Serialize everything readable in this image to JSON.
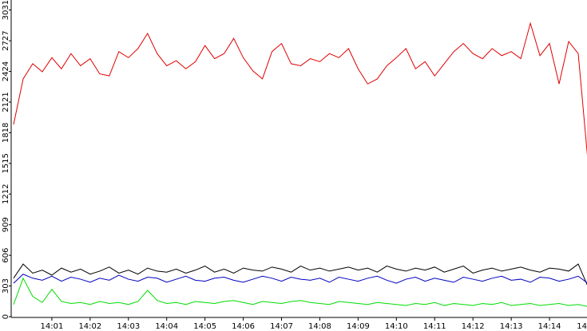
{
  "chart_data": {
    "type": "line",
    "x": [
      0,
      0.25,
      0.5,
      0.75,
      1,
      1.25,
      1.5,
      1.75,
      2,
      2.25,
      2.5,
      2.75,
      3,
      3.25,
      3.5,
      3.75,
      4,
      4.25,
      4.5,
      4.75,
      5,
      5.25,
      5.5,
      5.75,
      6,
      6.25,
      6.5,
      6.75,
      7,
      7.25,
      7.5,
      7.75,
      8,
      8.25,
      8.5,
      8.75,
      9,
      9.25,
      9.5,
      9.75,
      10,
      10.25,
      10.5,
      10.75,
      11,
      11.25,
      11.5,
      11.75,
      12,
      12.25,
      12.5,
      12.75,
      13,
      13.25,
      13.5,
      13.75,
      14,
      14.25,
      14.5,
      14.75,
      15
    ],
    "xlim": [
      0,
      15
    ],
    "xticks": [
      {
        "value": 1,
        "label": "14:01"
      },
      {
        "value": 2,
        "label": "14:02"
      },
      {
        "value": 3,
        "label": "14:03"
      },
      {
        "value": 4,
        "label": "14:04"
      },
      {
        "value": 5,
        "label": "14:05"
      },
      {
        "value": 6,
        "label": "14:06"
      },
      {
        "value": 7,
        "label": "14:07"
      },
      {
        "value": 8,
        "label": "14:08"
      },
      {
        "value": 9,
        "label": "14:09"
      },
      {
        "value": 10,
        "label": "14:10"
      },
      {
        "value": 11,
        "label": "14:11"
      },
      {
        "value": 12,
        "label": "14:12"
      },
      {
        "value": 13,
        "label": "14:13"
      },
      {
        "value": 14,
        "label": "14:14"
      },
      {
        "value": 15,
        "label": "14"
      }
    ],
    "ylim": [
      0,
      3130
    ],
    "yticks": [
      0,
      303,
      606,
      909,
      1212,
      1515,
      1818,
      2121,
      2424,
      2727,
      3031
    ],
    "series": [
      {
        "color": "#e00000",
        "values": [
          1900,
          2350,
          2500,
          2420,
          2560,
          2450,
          2600,
          2480,
          2550,
          2400,
          2380,
          2620,
          2560,
          2650,
          2800,
          2600,
          2480,
          2530,
          2450,
          2520,
          2680,
          2550,
          2600,
          2750,
          2560,
          2430,
          2350,
          2620,
          2700,
          2500,
          2480,
          2550,
          2520,
          2600,
          2560,
          2650,
          2450,
          2300,
          2350,
          2480,
          2560,
          2650,
          2450,
          2520,
          2380,
          2500,
          2620,
          2700,
          2600,
          2550,
          2650,
          2580,
          2620,
          2550,
          2900,
          2580,
          2700,
          2300,
          2720,
          2600,
          1550
        ]
      },
      {
        "color": "#000000",
        "values": [
          380,
          520,
          430,
          460,
          410,
          480,
          440,
          470,
          420,
          450,
          490,
          430,
          460,
          420,
          480,
          450,
          440,
          470,
          430,
          460,
          500,
          440,
          470,
          430,
          480,
          460,
          450,
          490,
          470,
          440,
          500,
          460,
          480,
          450,
          470,
          490,
          460,
          480,
          440,
          500,
          470,
          450,
          480,
          460,
          490,
          440,
          470,
          500,
          430,
          460,
          480,
          450,
          470,
          490,
          460,
          440,
          480,
          470,
          450,
          520,
          300
        ]
      },
      {
        "color": "#0000c0",
        "values": [
          330,
          420,
          380,
          360,
          400,
          350,
          390,
          370,
          340,
          380,
          360,
          410,
          370,
          350,
          390,
          380,
          340,
          370,
          400,
          360,
          350,
          380,
          390,
          360,
          340,
          370,
          400,
          380,
          350,
          390,
          370,
          360,
          380,
          340,
          390,
          370,
          350,
          380,
          400,
          360,
          330,
          370,
          390,
          350,
          380,
          360,
          340,
          390,
          370,
          350,
          380,
          400,
          360,
          370,
          340,
          390,
          380,
          350,
          370,
          400,
          330
        ]
      },
      {
        "color": "#00dd00",
        "values": [
          120,
          380,
          200,
          140,
          270,
          150,
          130,
          140,
          120,
          150,
          130,
          140,
          120,
          150,
          260,
          160,
          130,
          140,
          120,
          150,
          140,
          130,
          150,
          160,
          140,
          120,
          150,
          140,
          130,
          150,
          160,
          140,
          130,
          120,
          150,
          140,
          130,
          120,
          140,
          130,
          120,
          110,
          130,
          120,
          140,
          110,
          130,
          120,
          110,
          130,
          120,
          140,
          110,
          120,
          130,
          110,
          120,
          130,
          110,
          120,
          100
        ]
      }
    ]
  }
}
